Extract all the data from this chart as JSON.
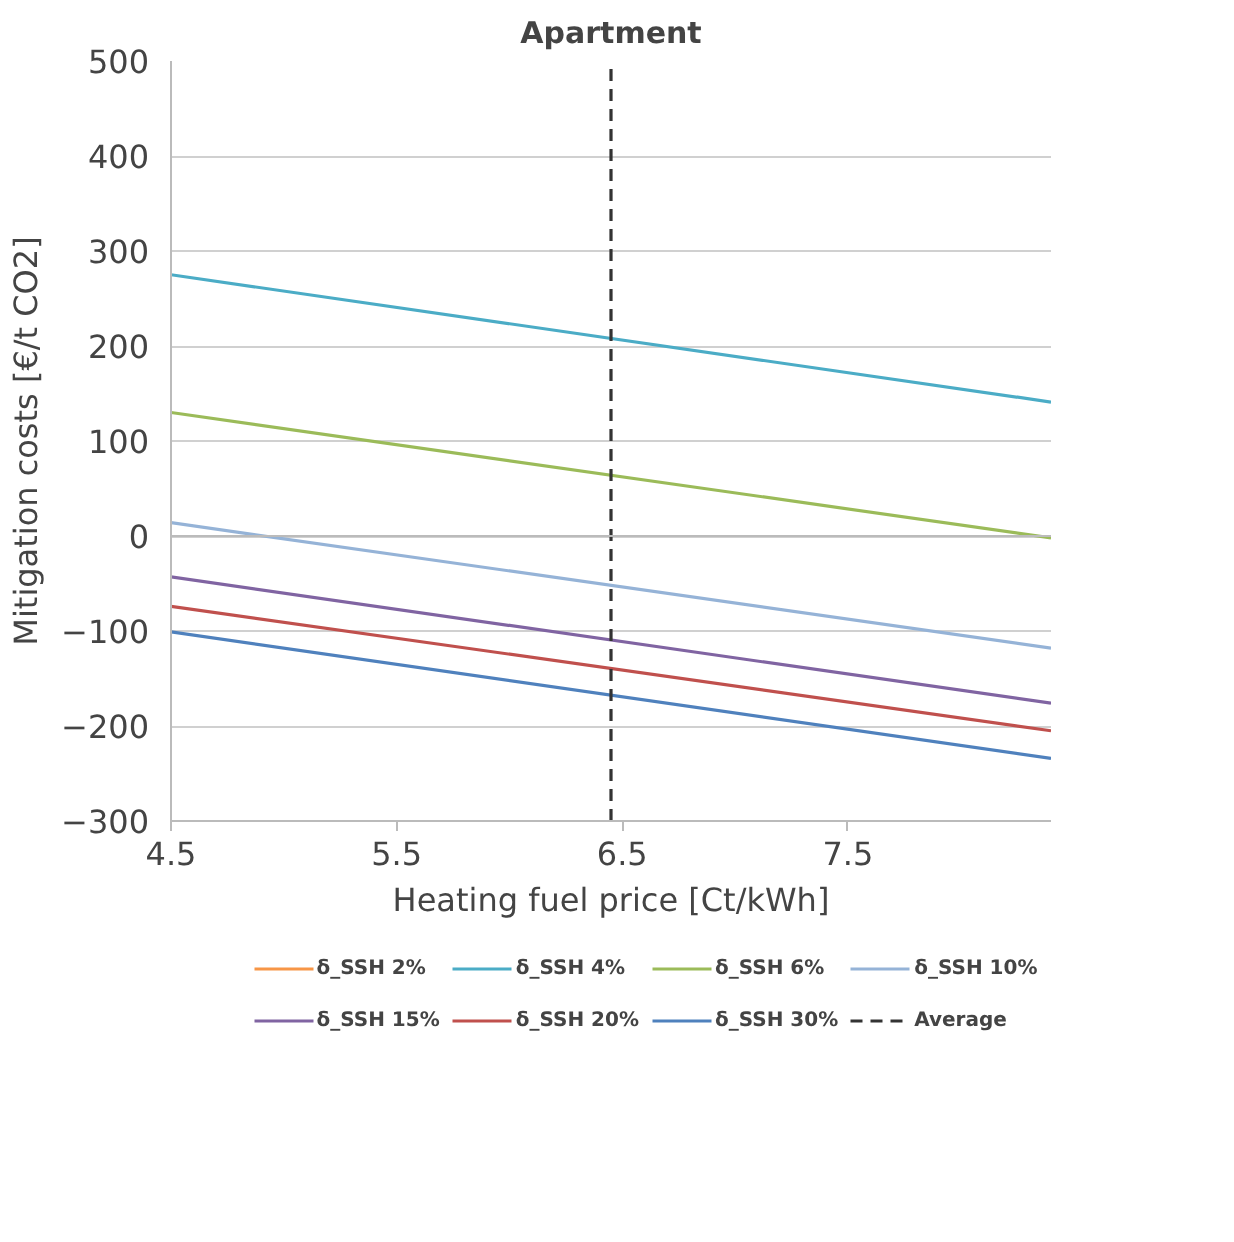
{
  "chart_data": {
    "type": "line",
    "title": "Apartment",
    "xlabel": "Heating fuel price [Ct/kWh]",
    "ylabel": "Mitigation costs [€/t CO2]",
    "x": [
      4.5,
      8.4
    ],
    "xlim": [
      4.5,
      8.4
    ],
    "xticks": [
      4.5,
      5.5,
      6.5,
      7.5
    ],
    "ylim": [
      -300,
      500
    ],
    "yticks": [
      -300,
      -200,
      -100,
      0,
      100,
      200,
      300,
      400,
      500
    ],
    "series": [
      {
        "name": "δ_SSH 2%",
        "color": "#f79646",
        "values": [
          null,
          null
        ]
      },
      {
        "name": "δ_SSH 4%",
        "color": "#4bacc6",
        "values": [
          275,
          141
        ]
      },
      {
        "name": "δ_SSH 6%",
        "color": "#9bbb59",
        "values": [
          130,
          -2
        ]
      },
      {
        "name": "δ_SSH 10%",
        "color": "#95b3d7",
        "values": [
          14,
          -118
        ]
      },
      {
        "name": "δ_SSH 15%",
        "color": "#8064a2",
        "values": [
          -43,
          -176
        ]
      },
      {
        "name": "δ_SSH 20%",
        "color": "#c0504d",
        "values": [
          -74,
          -205
        ]
      },
      {
        "name": "δ_SSH 30%",
        "color": "#4f81bd",
        "values": [
          -101,
          -234
        ]
      }
    ],
    "ref_lines": [
      {
        "axis": "x",
        "value": 6.45,
        "label": "Average",
        "color": "#333333",
        "line_style": "dashed"
      }
    ],
    "grid": "y",
    "legend": "bottom",
    "marker": "none",
    "line_style": "solid"
  }
}
